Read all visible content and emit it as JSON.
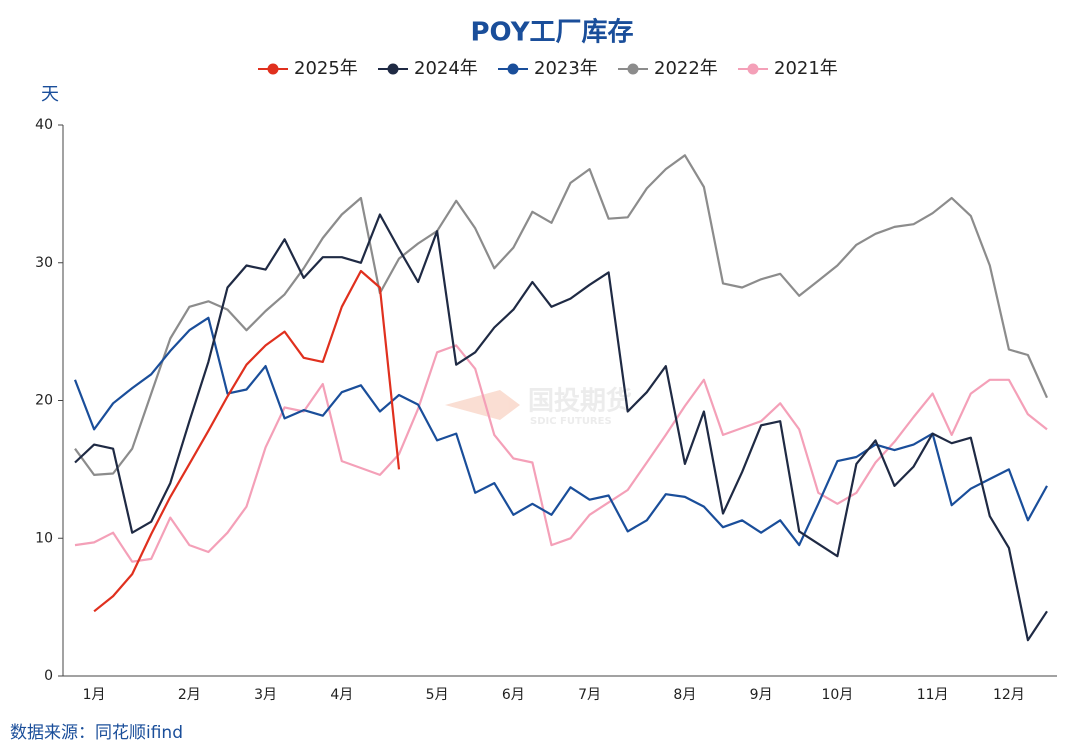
{
  "chart_data": {
    "type": "line",
    "title": "POY工厂库存",
    "y_label": "天",
    "source": "数据来源：同花顺ifind",
    "watermark": {
      "name": "国投期货",
      "sub": "SDIC FUTURES"
    },
    "categories": [
      null,
      "1月",
      null,
      null,
      null,
      null,
      "2月",
      null,
      null,
      null,
      "3月",
      null,
      null,
      null,
      "4月",
      null,
      null,
      null,
      null,
      "5月",
      null,
      null,
      null,
      "6月",
      null,
      null,
      null,
      "7月",
      null,
      null,
      null,
      null,
      "8月",
      null,
      null,
      null,
      "9月",
      null,
      null,
      null,
      "10月",
      null,
      null,
      null,
      null,
      "11月",
      null,
      null,
      null,
      "12月",
      null,
      null
    ],
    "ylim": [
      0,
      40
    ],
    "yticks": [
      0,
      10,
      20,
      30,
      40
    ],
    "series": [
      {
        "name": "2025年",
        "color": "#e0301e",
        "values": [
          null,
          4.7,
          5.8,
          7.4,
          10.3,
          13.0,
          15.4,
          17.8,
          20.3,
          22.6,
          24.0,
          25.0,
          23.1,
          22.8,
          26.8,
          29.4,
          28.2,
          15.0,
          null,
          null,
          null,
          null,
          null,
          null,
          null,
          null,
          null,
          null,
          null,
          null,
          null,
          null,
          null,
          null,
          null,
          null,
          null,
          null,
          null,
          null,
          null,
          null,
          null,
          null,
          null,
          null,
          null,
          null,
          null,
          null,
          null,
          null
        ]
      },
      {
        "name": "2024年",
        "color": "#1f2a44",
        "values": [
          15.5,
          16.8,
          16.5,
          10.4,
          11.2,
          14.0,
          18.5,
          22.8,
          28.2,
          29.8,
          29.5,
          31.7,
          28.9,
          30.4,
          30.4,
          30.0,
          33.5,
          31.0,
          28.6,
          32.3,
          22.6,
          23.5,
          25.3,
          26.6,
          28.6,
          26.8,
          27.4,
          28.4,
          29.3,
          19.2,
          20.6,
          22.5,
          15.4,
          19.2,
          11.8,
          14.8,
          18.2,
          18.5,
          10.5,
          9.6,
          8.7,
          15.4,
          17.1,
          13.8,
          15.2,
          17.6,
          16.9,
          17.3,
          11.6,
          9.3,
          2.6,
          4.7
        ]
      },
      {
        "name": "2023年",
        "color": "#1a4e9a",
        "values": [
          21.5,
          17.9,
          19.8,
          20.9,
          21.9,
          23.6,
          25.1,
          26.0,
          20.5,
          20.8,
          22.5,
          18.7,
          19.3,
          18.9,
          20.6,
          21.1,
          19.2,
          20.4,
          19.7,
          17.1,
          17.6,
          13.3,
          14.0,
          11.7,
          12.5,
          11.7,
          13.7,
          12.8,
          13.1,
          10.5,
          11.3,
          13.2,
          13.0,
          12.3,
          10.8,
          11.3,
          10.4,
          11.3,
          9.5,
          12.5,
          15.6,
          15.9,
          16.8,
          16.4,
          16.8,
          17.6,
          12.4,
          13.6,
          14.3,
          15.0,
          11.3,
          13.8
        ]
      },
      {
        "name": "2022年",
        "color": "#8c8c8c",
        "values": [
          16.5,
          14.6,
          14.7,
          16.5,
          20.5,
          24.5,
          26.8,
          27.2,
          26.6,
          25.1,
          26.5,
          27.7,
          29.6,
          31.8,
          33.5,
          34.7,
          27.8,
          30.3,
          31.4,
          32.3,
          34.5,
          32.5,
          29.6,
          31.1,
          33.7,
          32.9,
          35.8,
          36.8,
          33.2,
          33.3,
          35.4,
          36.8,
          37.8,
          35.5,
          28.5,
          28.2,
          28.8,
          29.2,
          27.6,
          28.7,
          29.8,
          31.3,
          32.1,
          32.6,
          32.8,
          33.6,
          34.7,
          33.4,
          29.8,
          23.7,
          23.3,
          20.2
        ]
      },
      {
        "name": "2021年",
        "color": "#f4a0b8",
        "values": [
          9.5,
          9.7,
          10.4,
          8.3,
          8.5,
          11.5,
          9.5,
          9.0,
          10.4,
          12.3,
          16.6,
          19.5,
          19.2,
          21.2,
          15.6,
          15.1,
          14.6,
          16.1,
          19.4,
          23.5,
          24.0,
          22.3,
          17.5,
          15.8,
          15.5,
          9.5,
          10.0,
          11.7,
          12.6,
          13.5,
          15.5,
          17.5,
          19.6,
          21.5,
          17.5,
          18.0,
          18.5,
          19.8,
          17.9,
          13.3,
          12.5,
          13.3,
          15.5,
          17.0,
          18.8,
          20.5,
          17.5,
          20.5,
          21.5,
          21.5,
          19.0,
          17.9
        ]
      }
    ]
  }
}
